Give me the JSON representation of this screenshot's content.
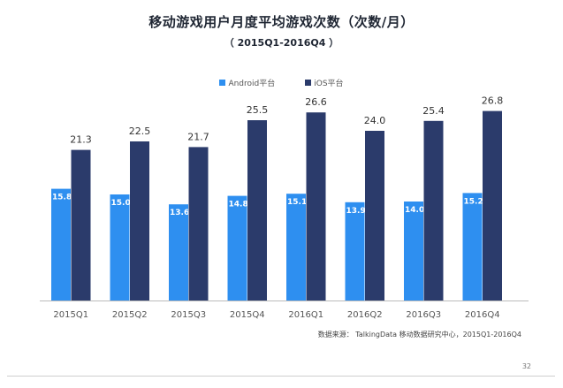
{
  "title": "移动游戏用户月度平均游戏次数（次数/月）",
  "subtitle": "（ 2015Q1-2016Q4 ）",
  "source": "数据来源：  TalkingData 移动数据研究中心，2015Q1-2016Q4",
  "page_number": "32",
  "colors": {
    "android": "#2e8ff0",
    "ios": "#2b3b6b",
    "axis": "#bbbbbb"
  },
  "chart_data": {
    "type": "bar",
    "categories": [
      "2015Q1",
      "2015Q2",
      "2015Q3",
      "2015Q4",
      "2016Q1",
      "2016Q2",
      "2016Q3",
      "2016Q4"
    ],
    "series": [
      {
        "name": "Android平台",
        "values": [
          15.8,
          15.0,
          13.6,
          14.8,
          15.1,
          13.9,
          14.0,
          15.2
        ]
      },
      {
        "name": "iOS平台",
        "values": [
          21.3,
          22.5,
          21.7,
          25.5,
          26.6,
          24.0,
          25.4,
          26.8
        ]
      }
    ],
    "ylim": [
      0,
      30
    ],
    "grid": false,
    "legend_position": "top-center"
  }
}
